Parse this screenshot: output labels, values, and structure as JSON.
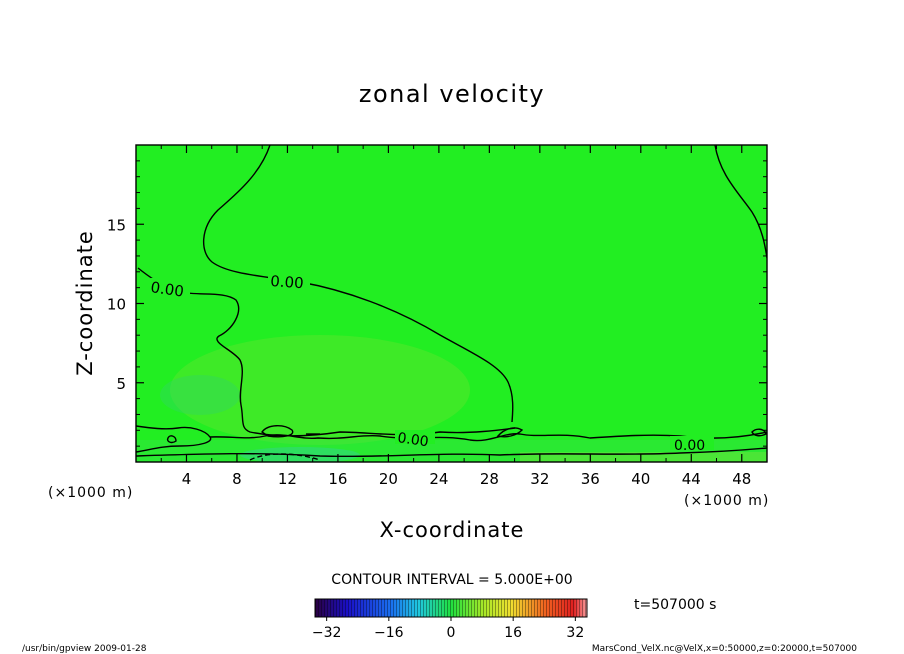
{
  "chart_data": {
    "type": "heatmap",
    "title": "zonal velocity",
    "xlabel": "X-coordinate",
    "ylabel": "Z-coordinate",
    "x_unit_left": "(×1000 m)",
    "x_unit_right": "(×1000 m)",
    "xlim": [
      0,
      50
    ],
    "ylim": [
      0,
      20
    ],
    "x_ticks": [
      "4",
      "8",
      "12",
      "16",
      "20",
      "24",
      "28",
      "32",
      "36",
      "40",
      "44",
      "48"
    ],
    "y_ticks": [
      "5",
      "10",
      "15"
    ],
    "contour_interval_text": "CONTOUR INTERVAL = 5.000E+00",
    "contour_labels": [
      "0.00",
      "0.00",
      "0.00",
      "0.00"
    ],
    "colorbar": {
      "min": -35,
      "max": 35,
      "ticks": [
        "−32",
        "−16",
        "0",
        "16",
        "32"
      ]
    },
    "time_label": "t=507000 s",
    "background_color": "#22ee22",
    "contour_color": "#000000",
    "footer_left": "/usr/bin/gpview   2009-01-28",
    "footer_right": "MarsCond_VelX.nc@VelX,x=0:50000,z=0:20000,t=507000"
  }
}
